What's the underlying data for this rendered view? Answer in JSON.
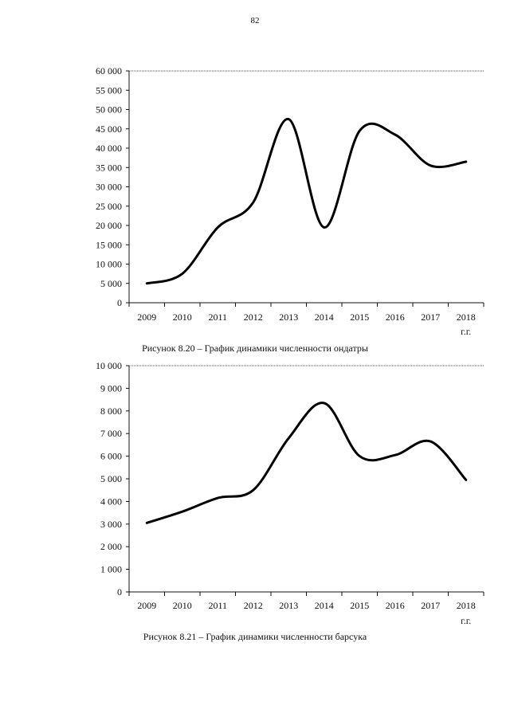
{
  "page": {
    "number": "82"
  },
  "chart_data": [
    {
      "type": "line",
      "categories": [
        "2009",
        "2010",
        "2011",
        "2012",
        "2013",
        "2014",
        "2015",
        "2016",
        "2017",
        "2018"
      ],
      "unit_label": "г.г.",
      "ylim": [
        0,
        60000
      ],
      "yticks": [
        0,
        5000,
        10000,
        15000,
        20000,
        25000,
        30000,
        35000,
        40000,
        45000,
        50000,
        55000,
        60000
      ],
      "ytick_labels": [
        "0",
        "5 000",
        "10 000",
        "15 000",
        "20 000",
        "25 000",
        "30 000",
        "35 000",
        "40 000",
        "45 000",
        "50 000",
        "55 000",
        "60 000"
      ],
      "series": [
        {
          "values": [
            5000,
            7500,
            19500,
            26000,
            47500,
            19500,
            44500,
            43500,
            35500,
            36500
          ]
        }
      ],
      "caption": "Рисунок 8.20 – График динамики численности ондатры",
      "grid": false
    },
    {
      "type": "line",
      "categories": [
        "2009",
        "2010",
        "2011",
        "2012",
        "2013",
        "2014",
        "2015",
        "2016",
        "2017",
        "2018"
      ],
      "unit_label": "г.г.",
      "ylim": [
        0,
        10000
      ],
      "yticks": [
        0,
        1000,
        2000,
        3000,
        4000,
        5000,
        6000,
        7000,
        8000,
        9000,
        10000
      ],
      "ytick_labels": [
        "0",
        "1 000",
        "2 000",
        "3 000",
        "4 000",
        "5 000",
        "6 000",
        "7 000",
        "8 000",
        "9 000",
        "10 000"
      ],
      "series": [
        {
          "values": [
            3050,
            3550,
            4150,
            4500,
            6800,
            8350,
            6000,
            6050,
            6650,
            4950
          ]
        }
      ],
      "caption": "Рисунок 8.21 – График динамики численности барсука",
      "grid": false
    }
  ]
}
